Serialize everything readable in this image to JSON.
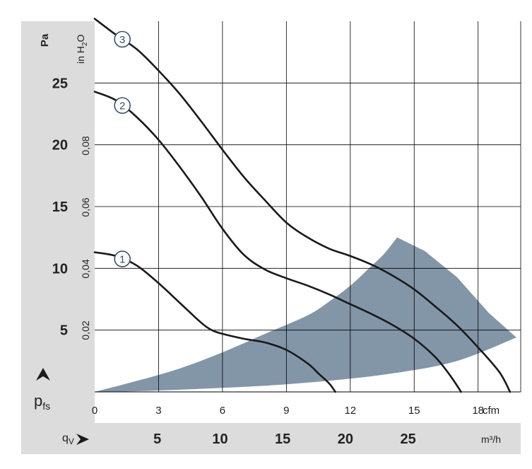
{
  "chart_data": {
    "type": "line",
    "axes": {
      "y_pa": {
        "label": "Pa",
        "min": 0,
        "max": 30,
        "ticks": [
          5,
          10,
          15,
          20,
          25
        ]
      },
      "y_inh2o": {
        "label": "in H",
        "label_sub": "2",
        "label_end": "O",
        "ticks": [
          0.02,
          0.04,
          0.06,
          0.08
        ],
        "tick_labels": [
          "0,02",
          "0,04",
          "0,06",
          "0,08"
        ]
      },
      "x_cfm": {
        "unit": "cfm",
        "min": 0,
        "max": 20,
        "ticks": [
          0,
          3,
          6,
          9,
          12,
          15,
          18
        ]
      },
      "x_m3h": {
        "unit": "m³/h",
        "ticks": [
          5,
          10,
          15,
          20,
          25
        ]
      },
      "y_symbol": "p",
      "y_symbol_sub": "fs",
      "x_symbol": "q",
      "x_symbol_sub": "V"
    },
    "grid": true,
    "series": [
      {
        "label": "1",
        "x": [
          0,
          1,
          2,
          3,
          4,
          5,
          5.5,
          6,
          7,
          8,
          9,
          10,
          10.5,
          11,
          11.3
        ],
        "y": [
          11.3,
          11,
          10.2,
          8.8,
          7.2,
          5.6,
          5,
          4.7,
          4.3,
          4,
          3.4,
          2.3,
          1.5,
          0.7,
          0
        ]
      },
      {
        "label": "2",
        "x": [
          0,
          1,
          2,
          3,
          4,
          5,
          6,
          7,
          8,
          9,
          10,
          11,
          12,
          13,
          14,
          15,
          16,
          16.7,
          17.2
        ],
        "y": [
          24.3,
          23.6,
          22.2,
          20.4,
          18.2,
          15.8,
          13.2,
          11.1,
          9.9,
          9.2,
          8.6,
          7.9,
          7.1,
          6.3,
          5.4,
          4.3,
          2.8,
          1.3,
          0
        ]
      },
      {
        "label": "3",
        "x": [
          0,
          1,
          2,
          3,
          4,
          5,
          6,
          7,
          8,
          9,
          10,
          11,
          12,
          13,
          14,
          15,
          16,
          17,
          18,
          19,
          19.5
        ],
        "y": [
          30.2,
          28.9,
          27.7,
          26,
          24.1,
          21.9,
          19.6,
          17.4,
          15.5,
          13.7,
          12.5,
          11.6,
          11,
          10.3,
          9.4,
          8.3,
          6.9,
          5.4,
          3.6,
          1.6,
          0
        ]
      }
    ],
    "shaded_region": {
      "color": "#8396a8",
      "upper": {
        "x": [
          0,
          2,
          4,
          6,
          8,
          10,
          11,
          12,
          13,
          13.6,
          14.2
        ],
        "y": [
          0,
          0.9,
          1.9,
          3.2,
          4.7,
          6.2,
          7.3,
          8.6,
          10.2,
          11.2,
          12.5
        ]
      },
      "outer": {
        "x": [
          14.2,
          15.5,
          17,
          18.5,
          19.8
        ],
        "y": [
          12.5,
          11.4,
          9.3,
          6.4,
          4.4
        ]
      },
      "lower": {
        "x": [
          19.8,
          17,
          14,
          11,
          8,
          5,
          2,
          0
        ],
        "y": [
          4.4,
          2.5,
          1.5,
          0.9,
          0.5,
          0.25,
          0.06,
          0
        ]
      }
    }
  },
  "colors": {
    "panel": "#dcdcdc",
    "grid": "#000000",
    "curve": "#1a1a1a",
    "badge": "#3a5166"
  }
}
